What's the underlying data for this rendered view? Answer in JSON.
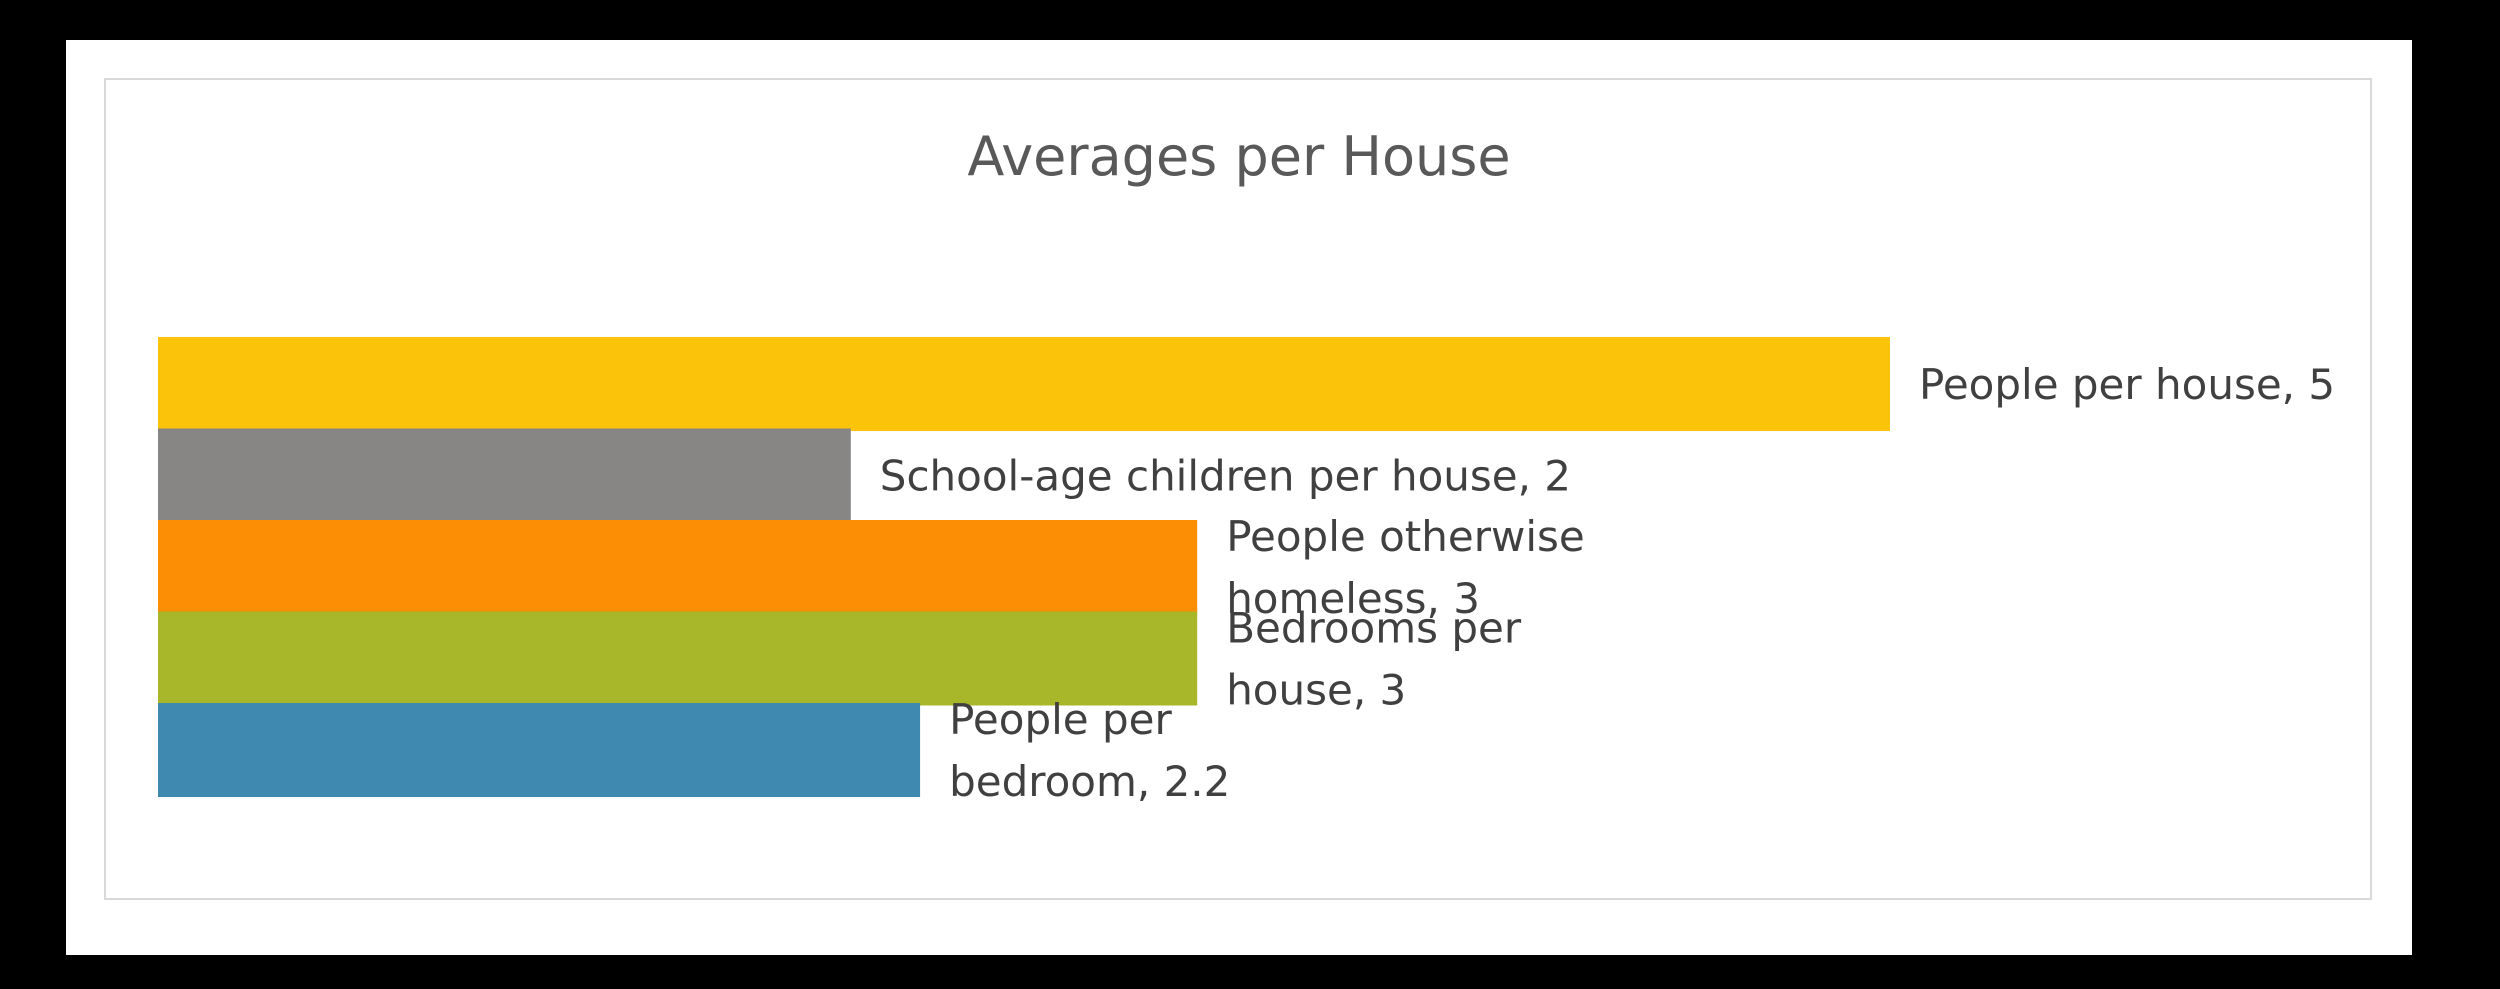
{
  "chart_data": {
    "type": "bar",
    "orientation": "horizontal",
    "title": "Averages per House",
    "xlabel": "",
    "ylabel": "",
    "xlim": [
      0,
      5
    ],
    "grid": false,
    "legend": "none",
    "bars": [
      {
        "category": "People per house",
        "value": 5,
        "color": "#FCC30B",
        "label_lines": [
          "People per house, 5"
        ]
      },
      {
        "category": "School-age children per house",
        "value": 2,
        "color": "#888585",
        "label_lines": [
          "School-age children per house, 2"
        ]
      },
      {
        "category": "People otherwise homeless",
        "value": 3,
        "color": "#FB8E04",
        "label_lines": [
          "People otherwise",
          "homeless, 3"
        ]
      },
      {
        "category": "Bedrooms per house",
        "value": 3,
        "color": "#A7B729",
        "label_lines": [
          "Bedrooms per",
          "house, 3"
        ]
      },
      {
        "category": "People per bedroom",
        "value": 2.2,
        "color": "#3F88AF",
        "label_lines": [
          "People per",
          "bedroom, 2.2"
        ]
      }
    ]
  }
}
